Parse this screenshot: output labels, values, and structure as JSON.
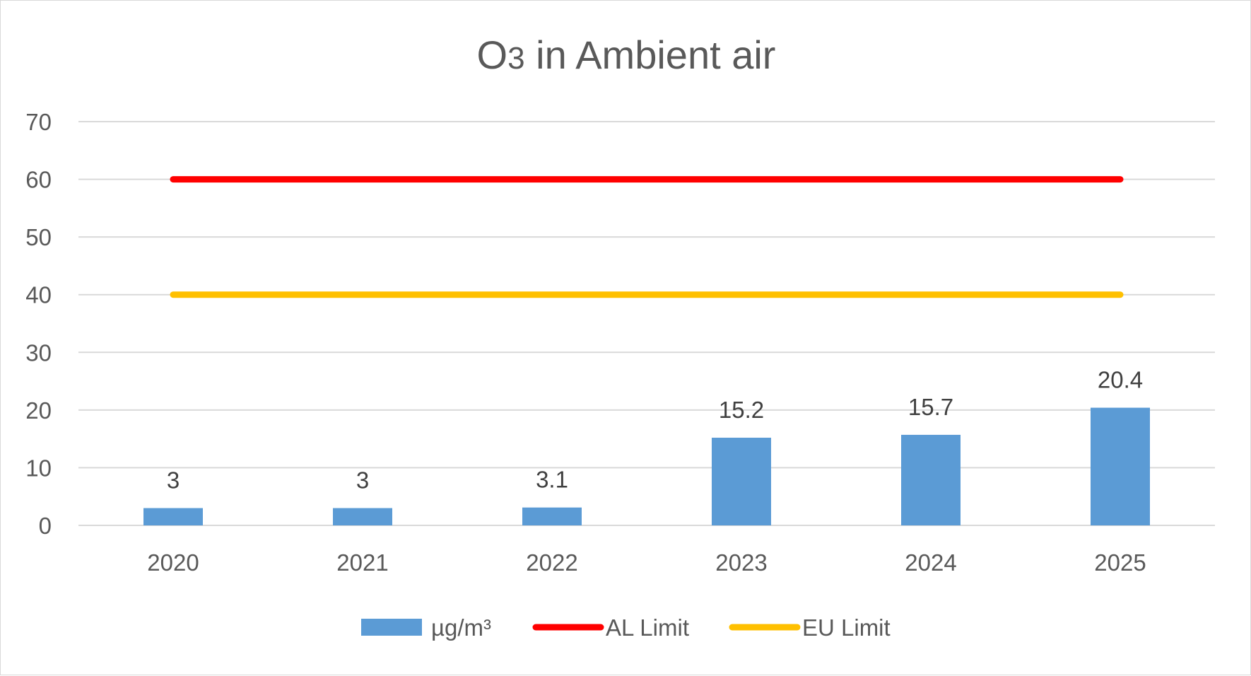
{
  "chart_data": {
    "type": "bar",
    "title": "O3 in Ambient air",
    "title_base": "O",
    "title_subscript": "3",
    "title_rest": " in Ambient air",
    "categories": [
      "2020",
      "2021",
      "2022",
      "2023",
      "2024",
      "2025"
    ],
    "series": [
      {
        "name": "µg/m³",
        "type": "bar",
        "color": "#5B9BD5",
        "values": [
          3,
          3,
          3.1,
          15.2,
          15.7,
          20.4
        ],
        "data_labels": [
          "3",
          "3",
          "3.1",
          "15.2",
          "15.7",
          "20.4"
        ]
      },
      {
        "name": "AL Limit",
        "type": "line",
        "color": "#FF0000",
        "values": [
          60,
          60,
          60,
          60,
          60,
          60
        ]
      },
      {
        "name": "EU Limit",
        "type": "line",
        "color": "#FFC000",
        "values": [
          40,
          40,
          40,
          40,
          40,
          40
        ]
      }
    ],
    "ylim": [
      0,
      70
    ],
    "yticks": [
      "0",
      "10",
      "20",
      "30",
      "40",
      "50",
      "60",
      "70"
    ],
    "grid": true,
    "legend_position": "bottom",
    "gridline_color": "#d9d9d9"
  }
}
